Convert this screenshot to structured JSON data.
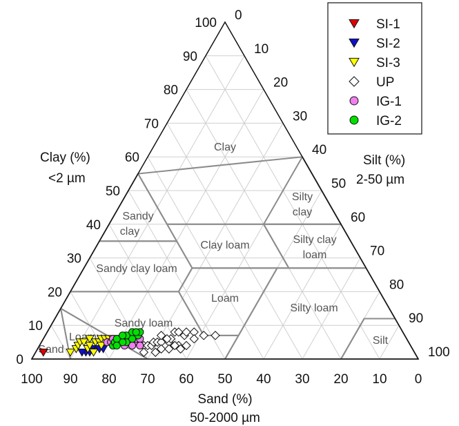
{
  "chart_data": {
    "type": "ternary-scatter",
    "axes": {
      "sand": {
        "title": "Sand (%)",
        "unit": "50-2000 µm",
        "range": [
          0,
          100
        ]
      },
      "silt": {
        "title": "Silt (%)",
        "unit": "2-50 µm",
        "range": [
          0,
          100
        ]
      },
      "clay": {
        "title": "Clay (%)",
        "unit": "<2 µm",
        "range": [
          0,
          100
        ]
      }
    },
    "ticks": {
      "clay": [
        "0",
        "10",
        "20",
        "30",
        "40",
        "50",
        "60",
        "70",
        "80",
        "90",
        "100"
      ],
      "silt": [
        "0",
        "10",
        "20",
        "30",
        "40",
        "50",
        "60",
        "70",
        "80",
        "90",
        "100"
      ],
      "sand": [
        "100",
        "90",
        "80",
        "70",
        "60",
        "50",
        "40",
        "30",
        "20",
        "10",
        "0"
      ]
    },
    "grid": true,
    "legend_position": "top-right",
    "regions": [
      {
        "name": "Clay",
        "label": "Clay",
        "polygon": [
          [
            45,
            0,
            55
          ],
          [
            0,
            40,
            60
          ],
          [
            0,
            60,
            40
          ],
          [
            20,
            40,
            40
          ],
          [
            45,
            15,
            40
          ],
          [
            45,
            0,
            55
          ]
        ]
      },
      {
        "name": "Sandy clay",
        "label": "Sandy clay",
        "polygon": [
          [
            65,
            0,
            35
          ],
          [
            45,
            20,
            35
          ],
          [
            45,
            0,
            55
          ]
        ]
      },
      {
        "name": "Silty clay",
        "label": "Silty clay",
        "polygon": [
          [
            20,
            40,
            40
          ],
          [
            0,
            60,
            40
          ],
          [
            0,
            40,
            60
          ]
        ]
      },
      {
        "name": "Sandy clay loam",
        "label": "Sandy clay loam",
        "polygon": [
          [
            80,
            0,
            20
          ],
          [
            65,
            0,
            35
          ],
          [
            45,
            20,
            35
          ],
          [
            45,
            28,
            27
          ],
          [
            52,
            28,
            20
          ]
        ]
      },
      {
        "name": "Clay loam",
        "label": "Clay loam",
        "polygon": [
          [
            45,
            28,
            27
          ],
          [
            45,
            15,
            40
          ],
          [
            20,
            40,
            40
          ],
          [
            20,
            53,
            27
          ]
        ]
      },
      {
        "name": "Silty clay loam",
        "label": "Silty clay loam",
        "polygon": [
          [
            20,
            53,
            27
          ],
          [
            20,
            40,
            40
          ],
          [
            0,
            60,
            40
          ],
          [
            0,
            73,
            27
          ]
        ]
      },
      {
        "name": "Loam",
        "label": "Loam",
        "polygon": [
          [
            52,
            28,
            20
          ],
          [
            45,
            28,
            27
          ],
          [
            23,
            50,
            27
          ],
          [
            43,
            50,
            7
          ],
          [
            52,
            41,
            7
          ]
        ]
      },
      {
        "name": "Silty loam",
        "label": "Silty loam",
        "polygon": [
          [
            50,
            50,
            0
          ],
          [
            20,
            80,
            0
          ],
          [
            8,
            80,
            12
          ],
          [
            0,
            88,
            12
          ],
          [
            0,
            73,
            27
          ],
          [
            23,
            50,
            27
          ]
        ]
      },
      {
        "name": "Silt",
        "label": "Silt",
        "polygon": [
          [
            20,
            80,
            0
          ],
          [
            0,
            100,
            0
          ],
          [
            0,
            88,
            12
          ],
          [
            8,
            80,
            12
          ]
        ]
      },
      {
        "name": "Sandy loam",
        "label": "Sandy loam",
        "polygon": [
          [
            85,
            0,
            15
          ],
          [
            80,
            0,
            20
          ],
          [
            52,
            28,
            20
          ],
          [
            52,
            41,
            7
          ],
          [
            43,
            50,
            7
          ],
          [
            50,
            50,
            0
          ],
          [
            70,
            30,
            0
          ]
        ]
      },
      {
        "name": "Loamy sand",
        "label": "Loamy",
        "polygon": [
          [
            90,
            10,
            0
          ],
          [
            70,
            30,
            0
          ],
          [
            85,
            0,
            15
          ]
        ]
      },
      {
        "name": "Sand",
        "label": "Sand",
        "polygon": [
          [
            100,
            0,
            0
          ],
          [
            90,
            10,
            0
          ],
          [
            85,
            0,
            15
          ]
        ]
      }
    ],
    "series": [
      {
        "name": "SI-1",
        "marker": "triangle-down",
        "color": "#e00000",
        "points": [
          [
            96,
            2,
            2
          ]
        ]
      },
      {
        "name": "SI-2",
        "marker": "triangle-down",
        "color": "#1010c8",
        "points": [
          [
            85,
            13,
            2
          ],
          [
            84,
            14,
            2
          ],
          [
            82,
            15,
            3
          ],
          [
            81,
            16,
            3
          ],
          [
            80,
            17,
            3
          ],
          [
            83,
            14,
            3
          ],
          [
            86,
            12,
            2
          ]
        ]
      },
      {
        "name": "SI-3",
        "marker": "triangle-down",
        "color": "#ffff00",
        "points": [
          [
            89,
            9,
            2
          ],
          [
            87,
            10,
            3
          ],
          [
            86,
            10,
            4
          ],
          [
            85,
            10,
            5
          ],
          [
            84,
            11,
            5
          ],
          [
            84,
            13,
            3
          ],
          [
            83,
            13,
            4
          ],
          [
            82,
            12,
            6
          ],
          [
            81,
            14,
            5
          ],
          [
            80,
            15,
            5
          ],
          [
            79,
            15,
            6
          ],
          [
            78,
            16,
            6
          ],
          [
            77,
            17,
            6
          ],
          [
            76,
            18,
            6
          ],
          [
            75,
            19,
            6
          ],
          [
            74,
            20,
            6
          ],
          [
            73,
            21,
            6
          ],
          [
            83,
            15,
            2
          ],
          [
            80,
            16,
            4
          ],
          [
            77,
            18,
            5
          ]
        ]
      },
      {
        "name": "UP",
        "marker": "diamond",
        "color": "#ffffff",
        "points": [
          [
            73,
            22,
            5
          ],
          [
            72,
            23,
            5
          ],
          [
            71,
            24,
            5
          ],
          [
            70,
            25,
            5
          ],
          [
            69,
            27,
            4
          ],
          [
            68,
            28,
            4
          ],
          [
            67,
            29,
            4
          ],
          [
            66,
            29,
            5
          ],
          [
            65,
            30,
            5
          ],
          [
            64,
            31,
            5
          ],
          [
            63,
            30,
            7
          ],
          [
            62,
            33,
            5
          ],
          [
            61,
            33,
            6
          ],
          [
            60,
            36,
            4
          ],
          [
            59,
            33,
            8
          ],
          [
            58,
            34,
            8
          ],
          [
            57,
            36,
            7
          ],
          [
            56,
            36,
            8
          ],
          [
            54,
            38,
            8
          ],
          [
            52,
            41,
            7
          ],
          [
            49,
            44,
            7
          ],
          [
            65,
            32,
            3
          ],
          [
            63,
            34,
            3
          ],
          [
            60,
            37,
            3
          ],
          [
            58,
            38,
            4
          ],
          [
            67,
            31,
            2
          ],
          [
            70,
            28,
            2
          ],
          [
            62,
            32,
            6
          ],
          [
            55,
            39,
            6
          ],
          [
            61,
            35,
            4
          ]
        ]
      },
      {
        "name": "IG-1",
        "marker": "circle",
        "color": "#f080f0",
        "points": [
          [
            78,
            17,
            5
          ],
          [
            77,
            18,
            5
          ],
          [
            76,
            19,
            5
          ],
          [
            75,
            20,
            5
          ],
          [
            74,
            21,
            5
          ],
          [
            73,
            22,
            5
          ],
          [
            72,
            23,
            5
          ],
          [
            71,
            24,
            5
          ],
          [
            70,
            24,
            6
          ],
          [
            69,
            25,
            6
          ],
          [
            74,
            22,
            4
          ],
          [
            72,
            24,
            4
          ],
          [
            70,
            26,
            4
          ],
          [
            76,
            18,
            6
          ]
        ]
      },
      {
        "name": "IG-2",
        "marker": "circle",
        "color": "#00e000",
        "points": [
          [
            77,
            19,
            4
          ],
          [
            76,
            19,
            5
          ],
          [
            75,
            20,
            5
          ],
          [
            74,
            20,
            6
          ],
          [
            73,
            21,
            6
          ],
          [
            72,
            22,
            6
          ],
          [
            71,
            22,
            7
          ],
          [
            70,
            23,
            7
          ],
          [
            69,
            24,
            7
          ],
          [
            68,
            24,
            8
          ],
          [
            73,
            22,
            5
          ],
          [
            71,
            23,
            6
          ],
          [
            74,
            21,
            5
          ],
          [
            72,
            21,
            7
          ],
          [
            70,
            22,
            8
          ],
          [
            75,
            19,
            6
          ],
          [
            69,
            23,
            8
          ],
          [
            73,
            20,
            7
          ],
          [
            76,
            20,
            4
          ]
        ]
      }
    ]
  }
}
